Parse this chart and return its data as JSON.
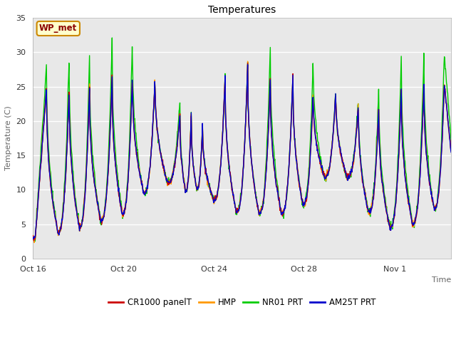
{
  "title": "Temperatures",
  "xlabel": "Time",
  "ylabel": "Temperature (C)",
  "ylim": [
    0,
    35
  ],
  "yticks": [
    0,
    5,
    10,
    15,
    20,
    25,
    30,
    35
  ],
  "plot_bg_color": "#e8e8e8",
  "line_colors": {
    "CR1000 panelT": "#cc0000",
    "HMP": "#ff9900",
    "NR01 PRT": "#00cc00",
    "AM25T PRT": "#0000cc"
  },
  "annotation_text": "WP_met",
  "annotation_color": "#8b0000",
  "annotation_bg": "#ffffcc",
  "annotation_border": "#cc8800",
  "n_days": 18.5,
  "n_points": 1000,
  "x_tick_labels": [
    "Oct 16",
    "Oct 20",
    "Oct 24",
    "Oct 28",
    "Nov 1"
  ],
  "x_tick_days": [
    0,
    4,
    8,
    12,
    16
  ],
  "grid_color": "#ffffff",
  "grid_lw": 1.0,
  "line_width": 1.0
}
